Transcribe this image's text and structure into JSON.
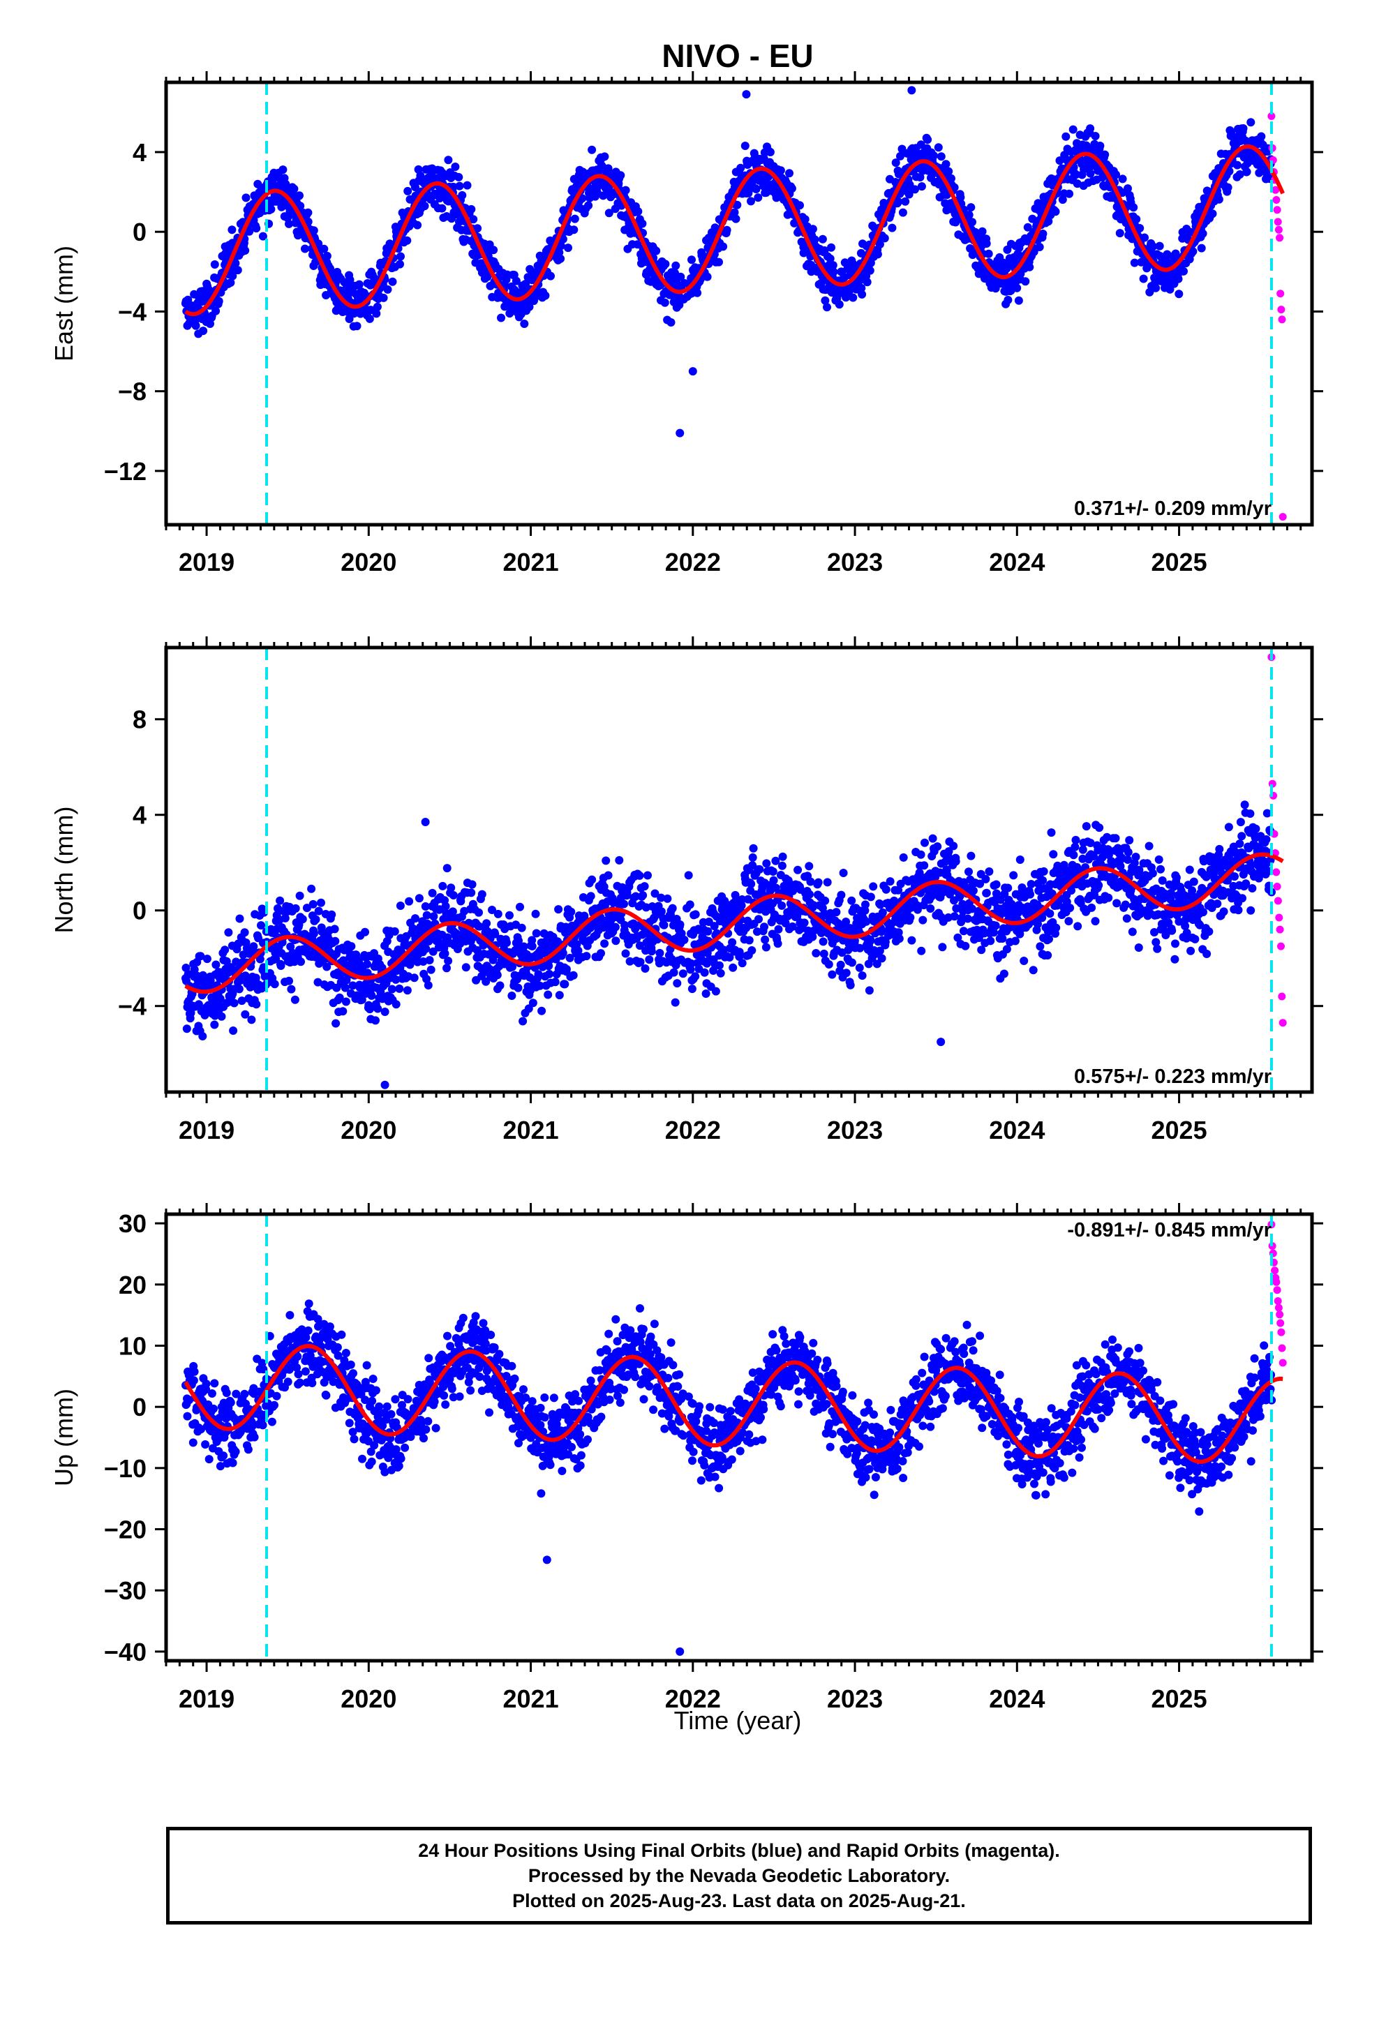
{
  "title": "NIVO - EU",
  "xlabel": "Time (year)",
  "footer": {
    "line1": "24 Hour Positions Using Final Orbits (blue) and Rapid Orbits (magenta).",
    "line2": "Processed by the Nevada Geodetic Laboratory.",
    "line3": "Plotted on 2025-Aug-23. Last data on 2025-Aug-21."
  },
  "colors": {
    "final_orbits": "#0000ff",
    "rapid_orbits": "#ff00ff",
    "model_fit": "#ff0000",
    "equipment_change": "#00e5ee",
    "frame": "#000000"
  },
  "chart_data": [
    {
      "type": "scatter",
      "panel": "east",
      "ylabel": "East (mm)",
      "rate_label": "0.371+/- 0.209 mm/yr",
      "xlim": [
        2018.75,
        2025.82
      ],
      "ylim": [
        -14.7,
        7.5
      ],
      "yticks": [
        4,
        0,
        -4,
        -8,
        -12
      ],
      "xticks": [
        2019,
        2020,
        2021,
        2022,
        2023,
        2024,
        2025
      ],
      "grid": false,
      "vertical_lines": [
        2019.37,
        2025.57
      ],
      "model": {
        "trend_intercept_at_2019": -1.1,
        "rate": 0.371,
        "amplitude": 3.0,
        "peak_phase_fraction": 0.42,
        "residual_scatter": 0.9
      },
      "series": [
        {
          "name": "Final Orbits",
          "x_start": 2018.87,
          "x_end": 2025.57,
          "points": 2300
        },
        {
          "name": "Rapid Orbits",
          "x_start": 2025.57,
          "x_end": 2025.64,
          "values": [
            5.8,
            4.2,
            3.6,
            3.0,
            2.6,
            2.1,
            1.6,
            1.1,
            0.5,
            0.1,
            -0.3,
            -3.1,
            -3.9,
            -4.4,
            -14.3
          ]
        }
      ],
      "outliers": [
        [
          2021.92,
          -10.1
        ],
        [
          2022.0,
          -7.0
        ],
        [
          2022.33,
          6.9
        ],
        [
          2023.35,
          7.1
        ]
      ]
    },
    {
      "type": "scatter",
      "panel": "north",
      "ylabel": "North (mm)",
      "rate_label": "0.575+/- 0.223 mm/yr",
      "xlim": [
        2018.75,
        2025.82
      ],
      "ylim": [
        -7.6,
        11.0
      ],
      "yticks": [
        8,
        4,
        0,
        -4
      ],
      "xticks": [
        2019,
        2020,
        2021,
        2022,
        2023,
        2024,
        2025
      ],
      "grid": false,
      "vertical_lines": [
        2019.37,
        2025.57
      ],
      "model": {
        "trend_intercept_at_2019": -2.4,
        "rate": 0.575,
        "amplitude": 1.0,
        "peak_phase_fraction": 0.5,
        "residual_scatter": 1.3
      },
      "series": [
        {
          "name": "Final Orbits",
          "x_start": 2018.87,
          "x_end": 2025.57,
          "points": 2300
        },
        {
          "name": "Rapid Orbits",
          "x_start": 2025.57,
          "x_end": 2025.64,
          "values": [
            10.6,
            5.3,
            4.8,
            3.2,
            2.4,
            1.6,
            1.0,
            0.4,
            -0.3,
            -0.8,
            -1.5,
            -3.6,
            -4.7
          ]
        }
      ],
      "outliers": [
        [
          2020.1,
          -7.3
        ],
        [
          2023.53,
          -5.5
        ],
        [
          2020.35,
          3.7
        ]
      ]
    },
    {
      "type": "scatter",
      "panel": "up",
      "ylabel": "Up (mm)",
      "rate_label": "-0.891+/- 0.845 mm/yr",
      "xlim": [
        2018.75,
        2025.82
      ],
      "ylim": [
        -41.5,
        31.5
      ],
      "yticks": [
        30,
        20,
        10,
        0,
        -10,
        -20,
        -30,
        -40
      ],
      "xticks": [
        2019,
        2020,
        2021,
        2022,
        2023,
        2024,
        2025
      ],
      "grid": false,
      "vertical_lines": [
        2019.37,
        2025.57
      ],
      "model": {
        "trend_intercept_at_2019": 3.5,
        "rate": -0.891,
        "amplitude": 7.0,
        "peak_phase_fraction": 0.63,
        "residual_scatter": 4.2
      },
      "series": [
        {
          "name": "Final Orbits",
          "x_start": 2018.87,
          "x_end": 2025.57,
          "points": 2300
        },
        {
          "name": "Rapid Orbits",
          "x_start": 2025.57,
          "x_end": 2025.64,
          "values": [
            29.8,
            26.3,
            25.1,
            23.6,
            22.3,
            21.1,
            20.4,
            19.1,
            17.3,
            16.2,
            15.1,
            13.7,
            12.2,
            9.6,
            7.2
          ]
        }
      ],
      "outliers": [
        [
          2021.92,
          -40.0
        ],
        [
          2021.1,
          -25.0
        ]
      ]
    }
  ]
}
